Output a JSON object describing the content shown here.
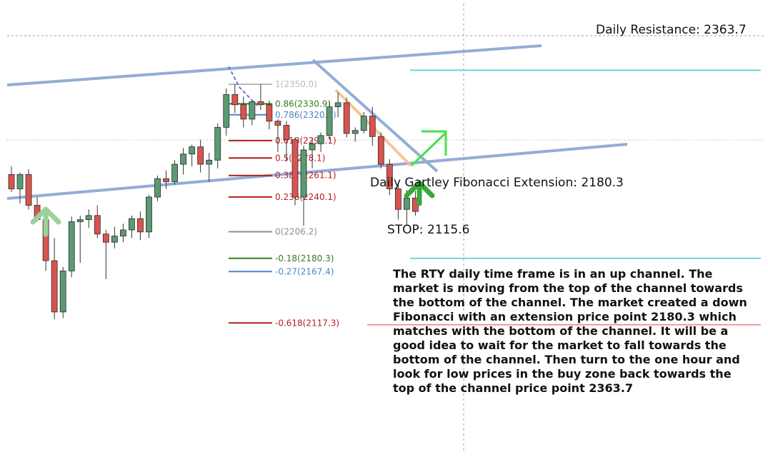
{
  "chart_data": {
    "type": "candlestick",
    "instrument": "RTY",
    "timeframe": "Daily",
    "candles": [
      {
        "o": 2262,
        "h": 2270,
        "l": 2245,
        "c": 2248
      },
      {
        "o": 2248,
        "h": 2264,
        "l": 2234,
        "c": 2262
      },
      {
        "o": 2262,
        "h": 2267,
        "l": 2228,
        "c": 2232
      },
      {
        "o": 2232,
        "h": 2240,
        "l": 2216,
        "c": 2218
      },
      {
        "o": 2218,
        "h": 2222,
        "l": 2168,
        "c": 2178
      },
      {
        "o": 2178,
        "h": 2200,
        "l": 2121,
        "c": 2128
      },
      {
        "o": 2128,
        "h": 2172,
        "l": 2122,
        "c": 2168
      },
      {
        "o": 2168,
        "h": 2221,
        "l": 2162,
        "c": 2216
      },
      {
        "o": 2216,
        "h": 2222,
        "l": 2176,
        "c": 2218
      },
      {
        "o": 2218,
        "h": 2228,
        "l": 2210,
        "c": 2222
      },
      {
        "o": 2222,
        "h": 2232,
        "l": 2200,
        "c": 2204
      },
      {
        "o": 2204,
        "h": 2208,
        "l": 2160,
        "c": 2196
      },
      {
        "o": 2196,
        "h": 2211,
        "l": 2190,
        "c": 2202
      },
      {
        "o": 2202,
        "h": 2214,
        "l": 2196,
        "c": 2208
      },
      {
        "o": 2208,
        "h": 2222,
        "l": 2200,
        "c": 2219
      },
      {
        "o": 2219,
        "h": 2226,
        "l": 2198,
        "c": 2206
      },
      {
        "o": 2206,
        "h": 2242,
        "l": 2200,
        "c": 2240
      },
      {
        "o": 2240,
        "h": 2261,
        "l": 2236,
        "c": 2258
      },
      {
        "o": 2258,
        "h": 2266,
        "l": 2248,
        "c": 2255
      },
      {
        "o": 2255,
        "h": 2276,
        "l": 2252,
        "c": 2272
      },
      {
        "o": 2272,
        "h": 2288,
        "l": 2262,
        "c": 2282
      },
      {
        "o": 2282,
        "h": 2291,
        "l": 2270,
        "c": 2289
      },
      {
        "o": 2289,
        "h": 2296,
        "l": 2264,
        "c": 2272
      },
      {
        "o": 2272,
        "h": 2283,
        "l": 2255,
        "c": 2276
      },
      {
        "o": 2276,
        "h": 2312,
        "l": 2268,
        "c": 2308
      },
      {
        "o": 2308,
        "h": 2346,
        "l": 2300,
        "c": 2340
      },
      {
        "o": 2340,
        "h": 2350,
        "l": 2322,
        "c": 2330
      },
      {
        "o": 2330,
        "h": 2338,
        "l": 2308,
        "c": 2316
      },
      {
        "o": 2316,
        "h": 2334,
        "l": 2310,
        "c": 2333
      },
      {
        "o": 2333,
        "h": 2350,
        "l": 2325,
        "c": 2330
      },
      {
        "o": 2330,
        "h": 2334,
        "l": 2306,
        "c": 2314
      },
      {
        "o": 2314,
        "h": 2316,
        "l": 2284,
        "c": 2310
      },
      {
        "o": 2310,
        "h": 2314,
        "l": 2275,
        "c": 2296
      },
      {
        "o": 2296,
        "h": 2298,
        "l": 2232,
        "c": 2240
      },
      {
        "o": 2240,
        "h": 2290,
        "l": 2212,
        "c": 2286
      },
      {
        "o": 2286,
        "h": 2298,
        "l": 2268,
        "c": 2292
      },
      {
        "o": 2292,
        "h": 2303,
        "l": 2284,
        "c": 2300
      },
      {
        "o": 2300,
        "h": 2333,
        "l": 2296,
        "c": 2328
      },
      {
        "o": 2328,
        "h": 2342,
        "l": 2318,
        "c": 2332
      },
      {
        "o": 2332,
        "h": 2337,
        "l": 2298,
        "c": 2302
      },
      {
        "o": 2302,
        "h": 2308,
        "l": 2294,
        "c": 2305
      },
      {
        "o": 2305,
        "h": 2323,
        "l": 2302,
        "c": 2319
      },
      {
        "o": 2319,
        "h": 2328,
        "l": 2290,
        "c": 2299
      },
      {
        "o": 2299,
        "h": 2303,
        "l": 2268,
        "c": 2272
      },
      {
        "o": 2272,
        "h": 2277,
        "l": 2242,
        "c": 2248
      },
      {
        "o": 2248,
        "h": 2254,
        "l": 2218,
        "c": 2228
      },
      {
        "o": 2228,
        "h": 2247,
        "l": 2212,
        "c": 2239
      },
      {
        "o": 2239,
        "h": 2246,
        "l": 2222,
        "c": 2226
      }
    ],
    "y_range": [
      2060,
      2410
    ],
    "fib_levels": [
      {
        "text": "1(2350.0)",
        "value": 2350.0,
        "color": "#b7bcc4"
      },
      {
        "text": "0.86(2330.9)",
        "value": 2330.9,
        "color": "#3a7a1e"
      },
      {
        "text": "0.786(2320.2)",
        "value": 2320.2,
        "color": "#4f86c6"
      },
      {
        "text": "0.618(2295.1)",
        "value": 2295.1,
        "color": "#b71c1c"
      },
      {
        "text": "0.5(2278.1)",
        "value": 2278.1,
        "color": "#b71c1c"
      },
      {
        "text": "0.382(2261.1)",
        "value": 2261.1,
        "color": "#b71c1c"
      },
      {
        "text": "0.236(2240.1)",
        "value": 2240.1,
        "color": "#b71c1c"
      },
      {
        "text": "0(2206.2)",
        "value": 2206.2,
        "color": "#8e8e8e"
      },
      {
        "text": "-0.18(2180.3)",
        "value": 2180.3,
        "color": "#3a7a1e"
      },
      {
        "text": "-0.27(2167.4)",
        "value": 2167.4,
        "color": "#4f86c6"
      },
      {
        "text": "-0.618(2117.3)",
        "value": 2117.3,
        "color": "#b71c1c"
      }
    ],
    "resistance": 2363.7,
    "extension": 2180.3,
    "stop": 2115.6,
    "colors": {
      "bull": "#5b9a72",
      "bear": "#d9534f",
      "channel": "#8ea9d4",
      "cyan_line": "#6fd3dd",
      "stop_line": "#eb9a9a",
      "pattern": "#f4c08b",
      "arrow_light": "#9ed19a",
      "arrow_dark": "#39a93c",
      "arrow_bright": "#47e04a",
      "crosshair": "#9e9e9e"
    }
  },
  "labels": {
    "resistance": "Daily Resistance: 2363.7",
    "extension": "Daily Gartley Fibonacci Extension: 2180.3",
    "stop": "STOP: 2115.6",
    "commentary": "The RTY daily time frame is in an up channel. The market is moving from the top of the channel towards the bottom of the channel. The market created a down Fibonacci with an extension price point 2180.3 which matches with the bottom of the channel. It will be a good idea to wait for the market to fall towards the bottom of the channel. Then turn to the one hour and look for low prices in the buy zone back towards the top of the channel price point 2363.7"
  }
}
